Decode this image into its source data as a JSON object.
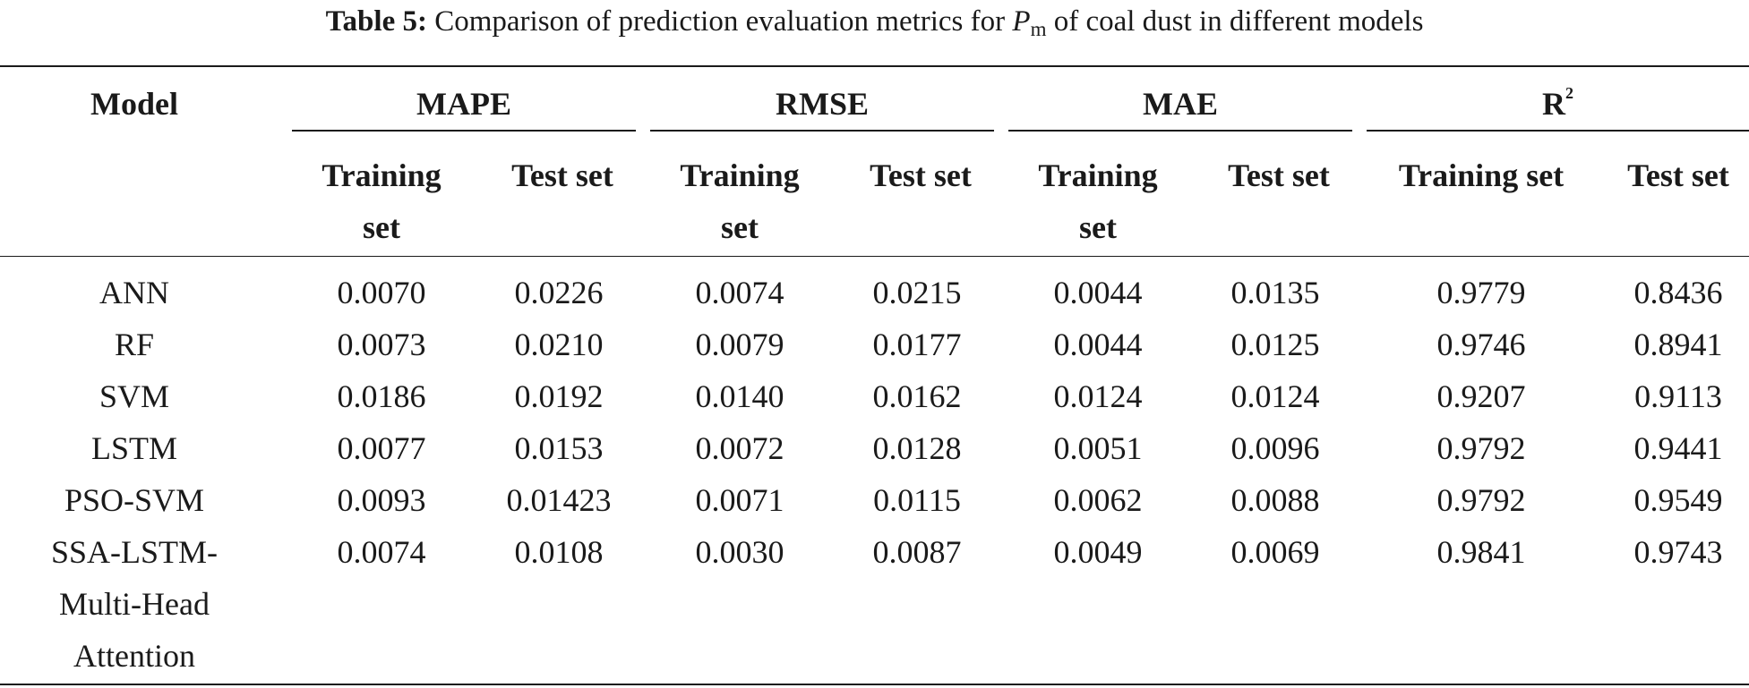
{
  "caption": {
    "label": "Table 5:",
    "text_before": "Comparison of prediction evaluation metrics for",
    "symbol": "P",
    "symbol_sub": "m",
    "text_after": "of coal dust in different models"
  },
  "header": {
    "model": "Model",
    "groups": [
      {
        "label": "MAPE"
      },
      {
        "label": "RMSE"
      },
      {
        "label": "MAE"
      },
      {
        "label": "R",
        "sup": "2"
      }
    ],
    "sub": [
      "Training set",
      "Test set",
      "Training set",
      "Test set",
      "Training set",
      "Test set",
      "Training set",
      "Test set"
    ]
  },
  "rows": [
    {
      "model": "ANN",
      "values": [
        "0.0070",
        "0.0226",
        "0.0074",
        "0.0215",
        "0.0044",
        "0.0135",
        "0.9779",
        "0.8436"
      ]
    },
    {
      "model": "RF",
      "values": [
        "0.0073",
        "0.0210",
        "0.0079",
        "0.0177",
        "0.0044",
        "0.0125",
        "0.9746",
        "0.8941"
      ]
    },
    {
      "model": "SVM",
      "values": [
        "0.0186",
        "0.0192",
        "0.0140",
        "0.0162",
        "0.0124",
        "0.0124",
        "0.9207",
        "0.9113"
      ]
    },
    {
      "model": "LSTM",
      "values": [
        "0.0077",
        "0.0153",
        "0.0072",
        "0.0128",
        "0.0051",
        "0.0096",
        "0.9792",
        "0.9441"
      ]
    },
    {
      "model": "PSO-SVM",
      "values": [
        "0.0093",
        "0.01423",
        "0.0071",
        "0.0115",
        "0.0062",
        "0.0088",
        "0.9792",
        "0.9549"
      ]
    },
    {
      "model": "SSA-LSTM-Multi-Head Attention",
      "values": [
        "0.0074",
        "0.0108",
        "0.0030",
        "0.0087",
        "0.0049",
        "0.0069",
        "0.9841",
        "0.9743"
      ]
    }
  ]
}
